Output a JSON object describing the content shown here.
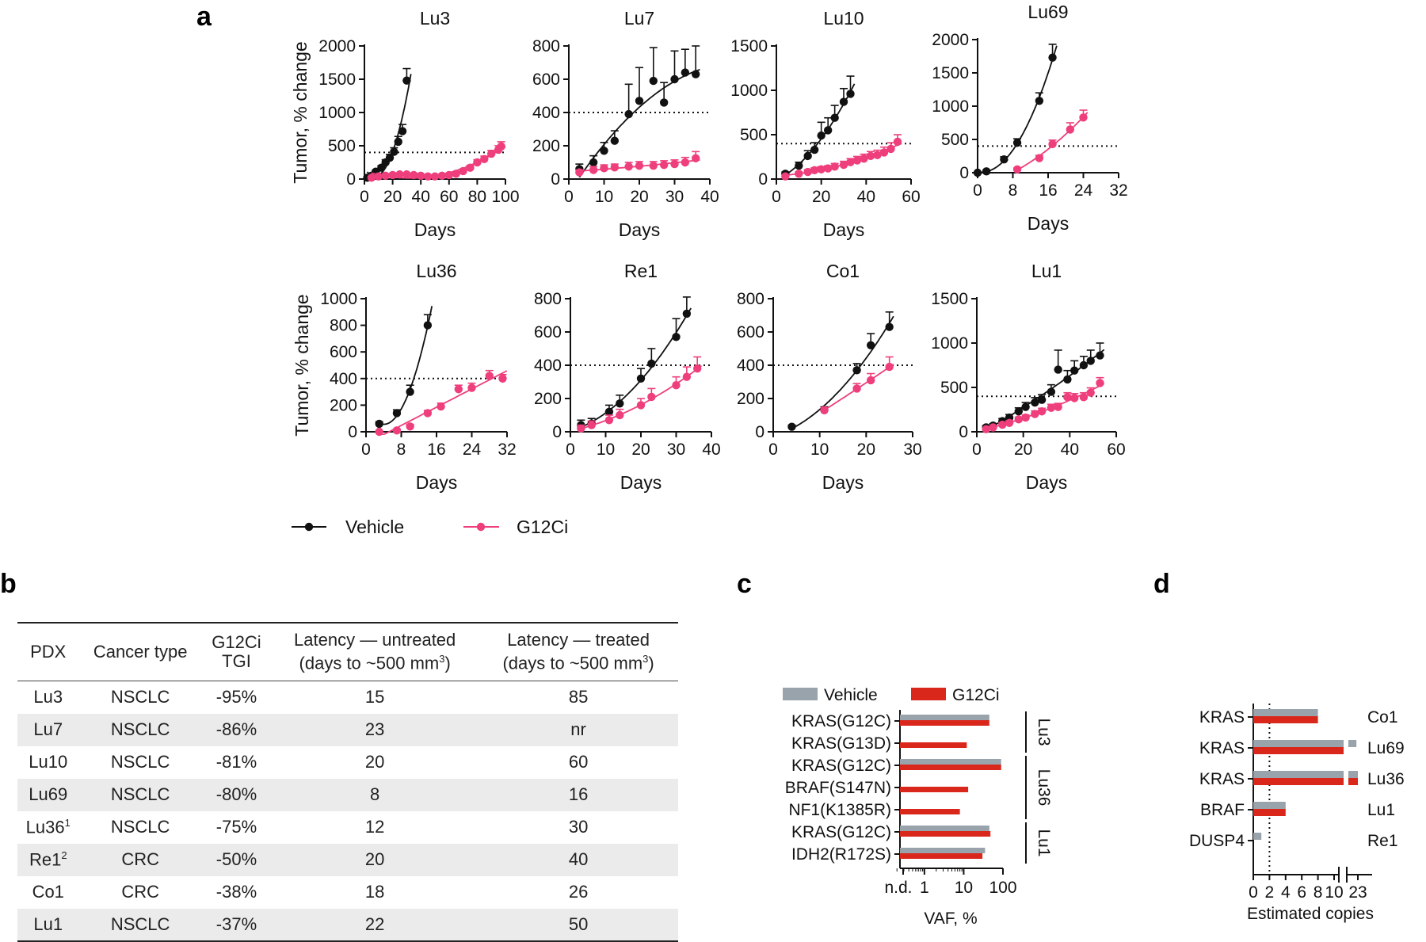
{
  "panel_letters": {
    "a": "a",
    "b": "b",
    "c": "c",
    "d": "d"
  },
  "colors": {
    "vehicle": "#111111",
    "g12ci": "#ee3e7b",
    "vehicle_bar": "#98a3ab",
    "g12ci_bar": "#d9271c",
    "table_stripe": "#ebebeb"
  },
  "chart_data": [
    {
      "type": "line",
      "title": "Lu3",
      "xlabel": "Days",
      "ylabel": "Tumor, % change",
      "xlim": [
        0,
        100
      ],
      "ylim": [
        0,
        2000
      ],
      "xticks": [
        0,
        20,
        40,
        60,
        80,
        100
      ],
      "yticks": [
        0,
        500,
        1000,
        1500,
        2000
      ],
      "threshold": 400,
      "series": [
        {
          "name": "Vehicle",
          "x": [
            2,
            5,
            8,
            12,
            15,
            18,
            21,
            24,
            27,
            30
          ],
          "y": [
            20,
            50,
            110,
            170,
            250,
            320,
            410,
            560,
            720,
            1480
          ],
          "err": [
            10,
            15,
            20,
            30,
            40,
            50,
            60,
            80,
            100,
            180
          ]
        },
        {
          "name": "G12Ci",
          "x": [
            5,
            10,
            15,
            20,
            25,
            30,
            35,
            40,
            45,
            50,
            55,
            60,
            65,
            70,
            75,
            80,
            85,
            90,
            95,
            97
          ],
          "y": [
            20,
            40,
            50,
            60,
            70,
            70,
            60,
            50,
            40,
            40,
            50,
            60,
            80,
            120,
            170,
            250,
            300,
            380,
            440,
            490
          ],
          "err": [
            10,
            15,
            15,
            15,
            20,
            20,
            20,
            15,
            15,
            15,
            20,
            20,
            25,
            30,
            35,
            40,
            45,
            50,
            60,
            70
          ]
        }
      ]
    },
    {
      "type": "line",
      "title": "Lu7",
      "xlabel": "Days",
      "ylabel": "",
      "xlim": [
        0,
        40
      ],
      "ylim": [
        0,
        800
      ],
      "xticks": [
        0,
        10,
        20,
        30,
        40
      ],
      "yticks": [
        0,
        200,
        400,
        600,
        800
      ],
      "threshold": 400,
      "series": [
        {
          "name": "Vehicle",
          "x": [
            3,
            7,
            10,
            13,
            17,
            20,
            24,
            27,
            30,
            33,
            36
          ],
          "y": [
            60,
            100,
            170,
            230,
            390,
            470,
            590,
            460,
            600,
            640,
            630
          ],
          "err": [
            30,
            40,
            50,
            60,
            180,
            200,
            200,
            120,
            170,
            140,
            170
          ]
        },
        {
          "name": "G12Ci",
          "x": [
            3,
            7,
            10,
            13,
            17,
            20,
            24,
            27,
            30,
            33,
            36
          ],
          "y": [
            40,
            55,
            65,
            70,
            75,
            80,
            80,
            85,
            90,
            100,
            125
          ],
          "err": [
            15,
            20,
            20,
            20,
            25,
            25,
            25,
            25,
            25,
            30,
            40
          ]
        }
      ]
    },
    {
      "type": "line",
      "title": "Lu10",
      "xlabel": "Days",
      "ylabel": "",
      "xlim": [
        0,
        60
      ],
      "ylim": [
        0,
        1500
      ],
      "xticks": [
        0,
        20,
        40,
        60
      ],
      "yticks": [
        0,
        500,
        1000,
        1500
      ],
      "threshold": 400,
      "series": [
        {
          "name": "Vehicle",
          "x": [
            4,
            10,
            14,
            17,
            20,
            23,
            26,
            30,
            33
          ],
          "y": [
            60,
            150,
            260,
            330,
            490,
            550,
            690,
            870,
            960
          ],
          "err": [
            20,
            40,
            60,
            80,
            150,
            140,
            140,
            150,
            200
          ]
        },
        {
          "name": "G12Ci",
          "x": [
            4,
            10,
            14,
            17,
            20,
            23,
            26,
            30,
            33,
            36,
            39,
            42,
            45,
            48,
            51,
            54
          ],
          "y": [
            30,
            60,
            80,
            100,
            110,
            120,
            140,
            160,
            190,
            210,
            230,
            260,
            270,
            300,
            340,
            420
          ],
          "err": [
            10,
            20,
            25,
            25,
            30,
            30,
            35,
            40,
            40,
            45,
            50,
            50,
            55,
            60,
            70,
            80
          ]
        }
      ]
    },
    {
      "type": "line",
      "title": "Lu69",
      "xlabel": "Days",
      "ylabel": "",
      "xlim": [
        0,
        32
      ],
      "ylim": [
        0,
        2000
      ],
      "xticks": [
        0,
        8,
        16,
        24,
        32
      ],
      "yticks": [
        0,
        500,
        1000,
        1500,
        2000
      ],
      "threshold": 400,
      "series": [
        {
          "name": "Vehicle",
          "x": [
            0,
            2,
            6,
            9,
            14,
            17
          ],
          "y": [
            0,
            20,
            200,
            450,
            1080,
            1730
          ],
          "err": [
            0,
            20,
            40,
            60,
            120,
            200
          ]
        },
        {
          "name": "G12Ci",
          "x": [
            9,
            14,
            17,
            21,
            24
          ],
          "y": [
            50,
            220,
            430,
            650,
            830
          ],
          "err": [
            20,
            40,
            60,
            100,
            110
          ]
        }
      ]
    },
    {
      "type": "line",
      "title": "Lu36",
      "xlabel": "Days",
      "ylabel": "Tumor, % change",
      "xlim": [
        0,
        32
      ],
      "ylim": [
        0,
        1000
      ],
      "xticks": [
        0,
        8,
        16,
        24,
        32
      ],
      "yticks": [
        0,
        200,
        400,
        600,
        800,
        1000
      ],
      "threshold": 400,
      "series": [
        {
          "name": "Vehicle",
          "x": [
            3,
            7,
            10,
            14
          ],
          "y": [
            60,
            140,
            300,
            800
          ],
          "err": [
            15,
            25,
            50,
            80
          ]
        },
        {
          "name": "G12Ci",
          "x": [
            3,
            7,
            10,
            14,
            17,
            21,
            24,
            28,
            31
          ],
          "y": [
            0,
            10,
            40,
            140,
            190,
            320,
            330,
            420,
            400
          ],
          "err": [
            0,
            10,
            15,
            20,
            25,
            30,
            35,
            40,
            30
          ]
        }
      ]
    },
    {
      "type": "line",
      "title": "Re1",
      "xlabel": "Days",
      "ylabel": "",
      "xlim": [
        0,
        40
      ],
      "ylim": [
        0,
        800
      ],
      "xticks": [
        0,
        10,
        20,
        30,
        40
      ],
      "yticks": [
        0,
        200,
        400,
        600,
        800
      ],
      "threshold": 400,
      "series": [
        {
          "name": "Vehicle",
          "x": [
            3,
            6,
            11,
            14,
            20,
            23,
            30,
            33
          ],
          "y": [
            40,
            50,
            120,
            170,
            320,
            410,
            570,
            710
          ],
          "err": [
            30,
            30,
            40,
            50,
            60,
            90,
            110,
            100
          ]
        },
        {
          "name": "G12Ci",
          "x": [
            3,
            6,
            11,
            14,
            20,
            23,
            30,
            33,
            36
          ],
          "y": [
            20,
            40,
            70,
            100,
            160,
            210,
            280,
            330,
            380
          ],
          "err": [
            20,
            25,
            30,
            35,
            40,
            50,
            50,
            60,
            70
          ]
        }
      ]
    },
    {
      "type": "line",
      "title": "Co1",
      "xlabel": "Days",
      "ylabel": "",
      "xlim": [
        0,
        30
      ],
      "ylim": [
        0,
        800
      ],
      "xticks": [
        0,
        10,
        20,
        30
      ],
      "yticks": [
        0,
        200,
        400,
        600,
        800
      ],
      "threshold": 400,
      "series": [
        {
          "name": "Vehicle",
          "x": [
            4,
            11,
            18,
            21,
            25
          ],
          "y": [
            30,
            130,
            370,
            520,
            630
          ],
          "err": [
            10,
            20,
            40,
            70,
            90
          ]
        },
        {
          "name": "G12Ci",
          "x": [
            11,
            18,
            21,
            25
          ],
          "y": [
            130,
            260,
            310,
            390
          ],
          "err": [
            15,
            30,
            40,
            60
          ]
        }
      ]
    },
    {
      "type": "line",
      "title": "Lu1",
      "xlabel": "Days",
      "ylabel": "",
      "xlim": [
        0,
        60
      ],
      "ylim": [
        0,
        1500
      ],
      "xticks": [
        0,
        20,
        40,
        60
      ],
      "yticks": [
        0,
        500,
        1000,
        1500
      ],
      "threshold": 400,
      "series": [
        {
          "name": "Vehicle",
          "x": [
            4,
            7,
            11,
            14,
            18,
            21,
            25,
            28,
            32,
            35,
            39,
            42,
            46,
            49,
            53
          ],
          "y": [
            50,
            70,
            120,
            160,
            230,
            280,
            330,
            360,
            450,
            700,
            590,
            690,
            750,
            800,
            860
          ],
          "err": [
            20,
            20,
            30,
            35,
            40,
            50,
            55,
            60,
            80,
            220,
            100,
            110,
            100,
            120,
            140
          ]
        },
        {
          "name": "G12Ci",
          "x": [
            4,
            7,
            11,
            14,
            18,
            21,
            25,
            28,
            32,
            35,
            39,
            42,
            46,
            49,
            53
          ],
          "y": [
            30,
            50,
            80,
            100,
            140,
            160,
            200,
            230,
            270,
            280,
            390,
            380,
            390,
            440,
            550
          ],
          "err": [
            10,
            15,
            20,
            25,
            25,
            30,
            35,
            35,
            40,
            40,
            50,
            50,
            50,
            55,
            60
          ]
        }
      ]
    },
    {
      "type": "bar",
      "orientation": "horizontal",
      "xlabel": "VAF, %",
      "xscale": "log",
      "xticks": [
        "n.d.",
        "1",
        "10",
        "100"
      ],
      "categories": [
        "KRAS(G12C)",
        "KRAS(G13D)",
        "KRAS(G12C)",
        "BRAF(S147N)",
        "NF1(K1385R)",
        "KRAS(G12C)",
        "IDH2(R172S)"
      ],
      "groups": [
        {
          "name": "Lu3",
          "rows": [
            0,
            1
          ]
        },
        {
          "name": "Lu36",
          "rows": [
            2,
            3,
            4
          ]
        },
        {
          "name": "Lu1",
          "rows": [
            5,
            6
          ]
        }
      ],
      "series": [
        {
          "name": "Vehicle",
          "values": [
            45,
            null,
            90,
            null,
            null,
            45,
            35
          ]
        },
        {
          "name": "G12Ci",
          "values": [
            45,
            12,
            90,
            13,
            8,
            48,
            30
          ]
        }
      ]
    },
    {
      "type": "bar",
      "orientation": "horizontal",
      "xlabel": "Estimated copies",
      "xticks": [
        "0",
        "2",
        "4",
        "6",
        "8",
        "10",
        "23"
      ],
      "reference_line": 2,
      "axis_break": "10 to 23",
      "categories": [
        "KRAS",
        "KRAS",
        "KRAS",
        "BRAF",
        "DUSP4"
      ],
      "models": [
        "Co1",
        "Lu69",
        "Lu36",
        "Lu1",
        "Re1"
      ],
      "series": [
        {
          "name": "Vehicle",
          "values": [
            8,
            22,
            23,
            4,
            1
          ]
        },
        {
          "name": "G12Ci",
          "values": [
            8,
            11,
            23,
            4,
            null
          ]
        }
      ]
    }
  ],
  "legend": {
    "vehicle": "Vehicle",
    "g12ci": "G12Ci"
  },
  "table": {
    "headers": {
      "pdx": "PDX",
      "cancer_type": "Cancer type",
      "tgi_l1": "G12Ci",
      "tgi_l2": "TGI",
      "untreated_l1": "Latency — untreated",
      "untreated_l2": "(days to ~500 mm",
      "treated_l1": "Latency — treated",
      "treated_l2": "(days to ~500 mm",
      "sup3": "3",
      "close": ")"
    },
    "rows": [
      {
        "pdx": "Lu3",
        "sup": "",
        "type": "NSCLC",
        "tgi": "-95%",
        "untreated": "15",
        "treated": "85"
      },
      {
        "pdx": "Lu7",
        "sup": "",
        "type": "NSCLC",
        "tgi": "-86%",
        "untreated": "23",
        "treated": "nr"
      },
      {
        "pdx": "Lu10",
        "sup": "",
        "type": "NSCLC",
        "tgi": "-81%",
        "untreated": "20",
        "treated": "60"
      },
      {
        "pdx": "Lu69",
        "sup": "",
        "type": "NSCLC",
        "tgi": "-80%",
        "untreated": "8",
        "treated": "16"
      },
      {
        "pdx": "Lu36",
        "sup": "1",
        "type": "NSCLC",
        "tgi": "-75%",
        "untreated": "12",
        "treated": "30"
      },
      {
        "pdx": "Re1",
        "sup": "2",
        "type": "CRC",
        "tgi": "-50%",
        "untreated": "20",
        "treated": "40"
      },
      {
        "pdx": "Co1",
        "sup": "",
        "type": "CRC",
        "tgi": "-38%",
        "untreated": "18",
        "treated": "26"
      },
      {
        "pdx": "Lu1",
        "sup": "",
        "type": "NSCLC",
        "tgi": "-37%",
        "untreated": "22",
        "treated": "50"
      }
    ]
  }
}
